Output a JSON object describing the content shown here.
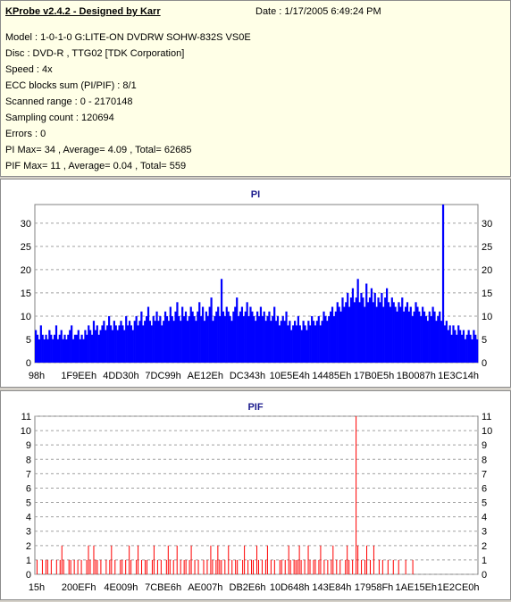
{
  "header": {
    "title": "KProbe v2.4.2 - Designed by Karr",
    "date": "Date : 1/17/2005 6:49:24 PM"
  },
  "info_lines": [
    "Model : 1-0-1-0 G:LITE-ON DVDRW SOHW-832S  VS0E",
    "Disc : DVD-R , TTG02 [TDK Corporation]",
    "Speed : 4x",
    "ECC blocks sum (PI/PIF) : 8/1",
    "Scanned range : 0 - 2170148",
    "Sampling count : 120694",
    "Errors : 0",
    "PI Max= 34 , Average= 4.09 , Total= 62685",
    "PIF Max= 11 , Average= 0.04 , Total= 559"
  ],
  "colors": {
    "pi_bar": "#0000ff",
    "pif_bar": "#ff0000",
    "grid": "#a0a0a0",
    "panel_bg": "#ffffff",
    "info_bg": "#ffffe7"
  },
  "chart_data": [
    {
      "type": "bar",
      "title": "PI",
      "ylim": [
        0,
        34
      ],
      "yticks": [
        0,
        5,
        10,
        15,
        20,
        25,
        30
      ],
      "xticklabels": [
        "98h",
        "1F9EEh",
        "4DD30h",
        "7DC99h",
        "AE12Eh",
        "DC343h",
        "10E5E4h",
        "14485Eh",
        "17B0E5h",
        "1B0087h",
        "1E3C14h"
      ],
      "grid": true,
      "values": [
        7,
        6,
        5,
        8,
        6,
        5,
        6,
        5,
        7,
        6,
        5,
        6,
        8,
        5,
        6,
        7,
        5,
        6,
        5,
        6,
        7,
        8,
        5,
        6,
        6,
        7,
        5,
        6,
        5,
        7,
        6,
        8,
        7,
        6,
        9,
        7,
        8,
        6,
        7,
        8,
        9,
        7,
        8,
        10,
        8,
        7,
        9,
        8,
        7,
        8,
        9,
        8,
        7,
        10,
        8,
        9,
        8,
        7,
        9,
        10,
        8,
        9,
        11,
        8,
        9,
        10,
        12,
        9,
        8,
        10,
        9,
        11,
        9,
        10,
        8,
        9,
        11,
        10,
        9,
        12,
        10,
        9,
        11,
        13,
        10,
        9,
        12,
        10,
        11,
        9,
        10,
        12,
        11,
        10,
        9,
        11,
        13,
        10,
        12,
        9,
        11,
        10,
        12,
        14,
        9,
        10,
        11,
        12,
        10,
        18,
        11,
        10,
        12,
        11,
        10,
        9,
        11,
        12,
        14,
        10,
        11,
        12,
        10,
        11,
        13,
        10,
        12,
        11,
        10,
        9,
        11,
        10,
        12,
        10,
        11,
        9,
        10,
        11,
        9,
        10,
        12,
        9,
        10,
        8,
        9,
        10,
        9,
        11,
        8,
        9,
        7,
        8,
        9,
        8,
        10,
        8,
        7,
        9,
        8,
        7,
        9,
        8,
        10,
        9,
        8,
        9,
        10,
        8,
        9,
        11,
        10,
        9,
        10,
        11,
        12,
        10,
        11,
        13,
        12,
        11,
        14,
        12,
        13,
        15,
        12,
        14,
        16,
        13,
        14,
        18,
        13,
        15,
        14,
        12,
        17,
        13,
        14,
        16,
        13,
        15,
        12,
        14,
        13,
        15,
        12,
        14,
        16,
        13,
        12,
        14,
        13,
        12,
        11,
        13,
        12,
        14,
        11,
        12,
        13,
        11,
        12,
        10,
        11,
        13,
        12,
        11,
        10,
        12,
        11,
        10,
        9,
        11,
        10,
        12,
        11,
        9,
        10,
        11,
        9,
        34,
        8,
        9,
        7,
        8,
        6,
        8,
        7,
        6,
        8,
        7,
        6,
        7,
        5,
        6,
        7,
        6,
        5,
        7,
        6,
        5
      ],
      "note": "PI Max= 34"
    },
    {
      "type": "bar",
      "title": "PIF",
      "ylim": [
        0,
        11
      ],
      "yticks": [
        0,
        1,
        2,
        3,
        4,
        5,
        6,
        7,
        8,
        9,
        10,
        11
      ],
      "xticklabels": [
        "15h",
        "200EFh",
        "4E009h",
        "7CBE6h",
        "AE007h",
        "DB2E6h",
        "10D648h",
        "143E84h",
        "17958Fh",
        "1AE15Eh",
        "1E2CE0h"
      ],
      "grid": true,
      "values": [
        0,
        1,
        0,
        0,
        1,
        0,
        1,
        1,
        0,
        1,
        0,
        0,
        1,
        0,
        1,
        2,
        1,
        0,
        0,
        1,
        1,
        0,
        1,
        0,
        1,
        0,
        1,
        0,
        0,
        1,
        2,
        1,
        0,
        2,
        1,
        1,
        0,
        1,
        0,
        0,
        1,
        0,
        1,
        2,
        0,
        1,
        0,
        0,
        1,
        1,
        0,
        1,
        0,
        2,
        1,
        0,
        0,
        1,
        2,
        0,
        1,
        0,
        1,
        1,
        0,
        0,
        1,
        2,
        0,
        1,
        0,
        1,
        0,
        0,
        1,
        2,
        1,
        0,
        1,
        0,
        2,
        0,
        1,
        0,
        1,
        1,
        0,
        1,
        2,
        0,
        1,
        0,
        1,
        0,
        0,
        1,
        0,
        1,
        0,
        2,
        1,
        0,
        1,
        2,
        1,
        1,
        0,
        1,
        0,
        2,
        0,
        1,
        0,
        1,
        1,
        0,
        0,
        1,
        2,
        0,
        1,
        0,
        1,
        1,
        0,
        2,
        1,
        0,
        1,
        0,
        1,
        2,
        0,
        1,
        0,
        1,
        0,
        0,
        1,
        1,
        0,
        1,
        0,
        2,
        1,
        0,
        1,
        1,
        1,
        2,
        1,
        0,
        1,
        0,
        2,
        1,
        0,
        1,
        1,
        0,
        1,
        2,
        0,
        1,
        0,
        1,
        0,
        1,
        2,
        0,
        1,
        0,
        1,
        0,
        0,
        1,
        2,
        1,
        0,
        1,
        0,
        11,
        2,
        0,
        1,
        0,
        1,
        2,
        0,
        1,
        0,
        2,
        0,
        0,
        1,
        0,
        1,
        0,
        0,
        1,
        0,
        0,
        1,
        0,
        0,
        1,
        0,
        0,
        0,
        1,
        0,
        0,
        0,
        1,
        0,
        0,
        0,
        0,
        0,
        0,
        0,
        0,
        0,
        0,
        0,
        0,
        0,
        0,
        0,
        0,
        0,
        0,
        0,
        0,
        0,
        0,
        0,
        0,
        0,
        0,
        0,
        0,
        0,
        0,
        0,
        0,
        0,
        0,
        0,
        0
      ],
      "note": "PIF Max= 11"
    }
  ]
}
